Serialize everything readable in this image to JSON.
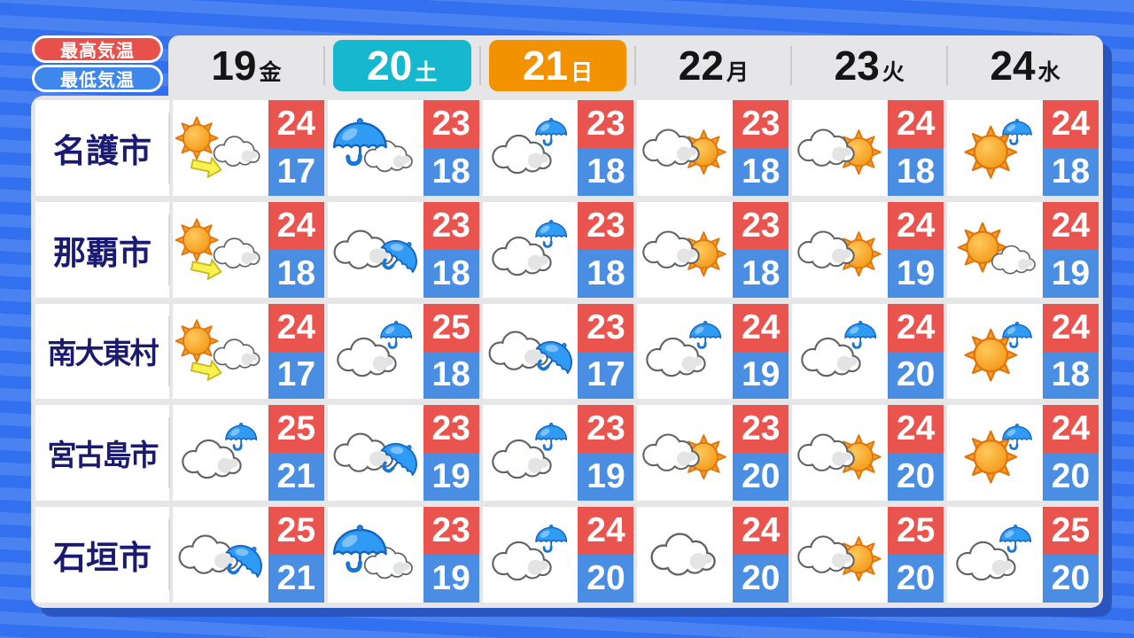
{
  "legend": {
    "high_label": "最高気温",
    "low_label": "最低気温"
  },
  "header": {
    "days": [
      {
        "date": "19",
        "weekday": "金",
        "highlight": "none"
      },
      {
        "date": "20",
        "weekday": "土",
        "highlight": "saturday"
      },
      {
        "date": "21",
        "weekday": "日",
        "highlight": "sunday"
      },
      {
        "date": "22",
        "weekday": "月",
        "highlight": "none"
      },
      {
        "date": "23",
        "weekday": "火",
        "highlight": "none"
      },
      {
        "date": "24",
        "weekday": "水",
        "highlight": "none"
      }
    ]
  },
  "table": {
    "rows": [
      {
        "city": "名護市",
        "cells": [
          {
            "icon": "sun-arrow-cloud",
            "high": "24",
            "low": "17"
          },
          {
            "icon": "umbrella-cloud",
            "high": "23",
            "low": "18"
          },
          {
            "icon": "cloud-umbrella",
            "high": "23",
            "low": "18"
          },
          {
            "icon": "cloud-sun",
            "high": "23",
            "low": "18"
          },
          {
            "icon": "cloud-sun",
            "high": "24",
            "low": "18"
          },
          {
            "icon": "sun-umbrella",
            "high": "24",
            "low": "18"
          }
        ]
      },
      {
        "city": "那覇市",
        "cells": [
          {
            "icon": "sun-arrow-cloud",
            "high": "24",
            "low": "18"
          },
          {
            "icon": "cloud-umbrella-tilt",
            "high": "23",
            "low": "18"
          },
          {
            "icon": "cloud-umbrella",
            "high": "23",
            "low": "18"
          },
          {
            "icon": "cloud-sun",
            "high": "23",
            "low": "18"
          },
          {
            "icon": "cloud-sun",
            "high": "24",
            "low": "19"
          },
          {
            "icon": "sun-cloud",
            "high": "24",
            "low": "19"
          }
        ]
      },
      {
        "city": "南大東村",
        "cells": [
          {
            "icon": "sun-arrow-cloud",
            "high": "24",
            "low": "17"
          },
          {
            "icon": "cloud-umbrella",
            "high": "25",
            "low": "18"
          },
          {
            "icon": "cloud-umbrella-tilt",
            "high": "23",
            "low": "17"
          },
          {
            "icon": "cloud-umbrella",
            "high": "24",
            "low": "19"
          },
          {
            "icon": "cloud-umbrella",
            "high": "24",
            "low": "20"
          },
          {
            "icon": "sun-umbrella",
            "high": "24",
            "low": "18"
          }
        ]
      },
      {
        "city": "宮古島市",
        "cells": [
          {
            "icon": "cloud-umbrella",
            "high": "25",
            "low": "21"
          },
          {
            "icon": "cloud-umbrella-tilt",
            "high": "23",
            "low": "19"
          },
          {
            "icon": "cloud-umbrella",
            "high": "23",
            "low": "19"
          },
          {
            "icon": "cloud-sun",
            "high": "23",
            "low": "20"
          },
          {
            "icon": "cloud-sun",
            "high": "24",
            "low": "20"
          },
          {
            "icon": "sun-umbrella",
            "high": "24",
            "low": "20"
          }
        ]
      },
      {
        "city": "石垣市",
        "cells": [
          {
            "icon": "cloud-umbrella-tilt",
            "high": "25",
            "low": "21"
          },
          {
            "icon": "umbrella-cloud",
            "high": "23",
            "low": "19"
          },
          {
            "icon": "cloud-umbrella",
            "high": "24",
            "low": "20"
          },
          {
            "icon": "cloud",
            "high": "24",
            "low": "20"
          },
          {
            "icon": "cloud-sun",
            "high": "25",
            "low": "20"
          },
          {
            "icon": "cloud-umbrella",
            "high": "25",
            "low": "20"
          }
        ]
      }
    ]
  },
  "colors": {
    "high_bg": "#EA544E",
    "low_bg": "#4A8EE4",
    "saturday_bg": "#15B8CE",
    "sunday_bg": "#F29200",
    "city_text": "#1A1A70",
    "background_blue": "#3370EF",
    "background_stripe": "#4A82F2",
    "panel_gray": "#E6E6E8",
    "shadow_blue": "#2A55BE",
    "legend_high_bg": "#E8514B",
    "legend_low_bg": "#3F87EA"
  },
  "chart_data": {
    "type": "table",
    "columns": [
      "19金",
      "20土",
      "21日",
      "22月",
      "23火",
      "24水"
    ],
    "rows": [
      {
        "city": "名護市",
        "weather": [
          "sun-arrow-cloud",
          "umbrella-cloud",
          "cloud-umbrella",
          "cloud-sun",
          "cloud-sun",
          "sun-umbrella"
        ],
        "high": [
          24,
          23,
          23,
          23,
          24,
          24
        ],
        "low": [
          17,
          18,
          18,
          18,
          18,
          18
        ]
      },
      {
        "city": "那覇市",
        "weather": [
          "sun-arrow-cloud",
          "cloud-umbrella-tilt",
          "cloud-umbrella",
          "cloud-sun",
          "cloud-sun",
          "sun-cloud"
        ],
        "high": [
          24,
          23,
          23,
          23,
          24,
          24
        ],
        "low": [
          18,
          18,
          18,
          18,
          19,
          19
        ]
      },
      {
        "city": "南大東村",
        "weather": [
          "sun-arrow-cloud",
          "cloud-umbrella",
          "cloud-umbrella-tilt",
          "cloud-umbrella",
          "cloud-umbrella",
          "sun-umbrella"
        ],
        "high": [
          24,
          25,
          23,
          24,
          24,
          24
        ],
        "low": [
          17,
          18,
          17,
          19,
          20,
          18
        ]
      },
      {
        "city": "宮古島市",
        "weather": [
          "cloud-umbrella",
          "cloud-umbrella-tilt",
          "cloud-umbrella",
          "cloud-sun",
          "cloud-sun",
          "sun-umbrella"
        ],
        "high": [
          25,
          23,
          23,
          23,
          24,
          24
        ],
        "low": [
          21,
          19,
          19,
          20,
          20,
          20
        ]
      },
      {
        "city": "石垣市",
        "weather": [
          "cloud-umbrella-tilt",
          "umbrella-cloud",
          "cloud-umbrella",
          "cloud",
          "cloud-sun",
          "cloud-umbrella"
        ],
        "high": [
          25,
          23,
          24,
          24,
          25,
          25
        ],
        "low": [
          21,
          19,
          20,
          20,
          20,
          20
        ]
      }
    ]
  }
}
